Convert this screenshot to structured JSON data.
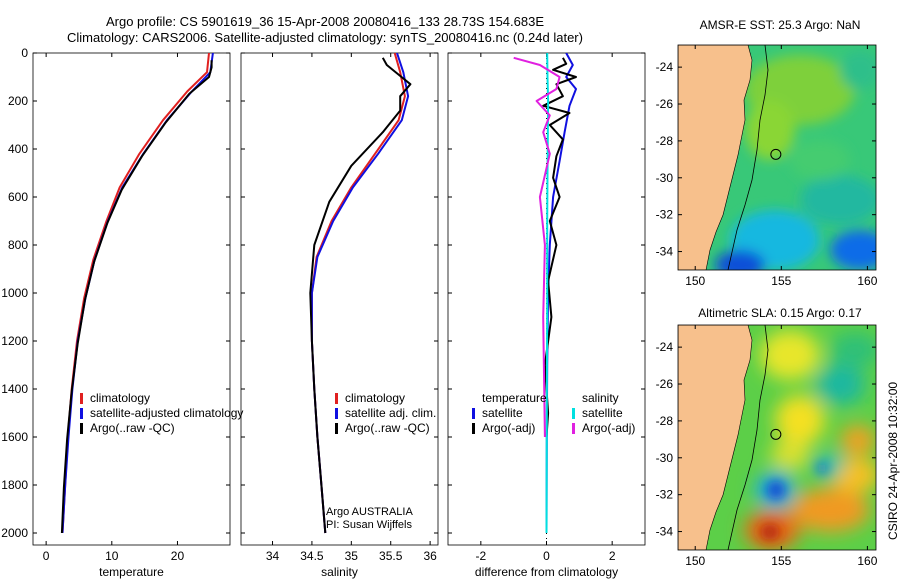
{
  "title_line1": "Argo profile: CS 5901619_36 15-Apr-2008 20080416_133 28.73S 154.683E",
  "title_line2": "Climatology: CARS2006. Satellite-adjusted climatology: synTS_20080416.nc (0.24d later)",
  "side_label": "CSIRO 24-Apr-2008 10:32:00",
  "colors": {
    "climatology": "#e02020",
    "satellite": "#1010e0",
    "argo": "#000000",
    "cyan": "#00e0e0",
    "magenta": "#e020e0",
    "land": "#f7c08c"
  },
  "chart_data": [
    {
      "type": "line",
      "xlabel": "temperature",
      "ylim": [
        2050,
        0
      ],
      "xlim": [
        -2,
        28
      ],
      "xticks": [
        0,
        10,
        20
      ],
      "yticks": [
        0,
        200,
        400,
        600,
        800,
        1000,
        1200,
        1400,
        1600,
        1800,
        2000
      ],
      "series": [
        {
          "name": "climatology",
          "color": "#e02020",
          "x": [
            24.8,
            24.5,
            21.5,
            17.8,
            14.2,
            11.2,
            9.2,
            7.2,
            5.8,
            4.7,
            3.9,
            3.3,
            2.9,
            2.5
          ],
          "y": [
            0,
            80,
            160,
            280,
            420,
            560,
            700,
            860,
            1020,
            1200,
            1400,
            1600,
            1800,
            2000
          ]
        },
        {
          "name": "satellite-adjusted climatology",
          "color": "#1010e0",
          "x": [
            25.4,
            25.0,
            22.2,
            18.4,
            14.8,
            11.6,
            9.4,
            7.4,
            6.0,
            4.8,
            4.0,
            3.4,
            2.9,
            2.5
          ],
          "y": [
            0,
            80,
            160,
            280,
            420,
            560,
            700,
            860,
            1020,
            1200,
            1400,
            1600,
            1800,
            2000
          ]
        },
        {
          "name": "Argo(..raw -QC)",
          "color": "#000000",
          "x": [
            25.2,
            25.2,
            24.8,
            21.8,
            18.2,
            14.6,
            11.5,
            9.3,
            7.3,
            5.9,
            4.8,
            3.9,
            3.2,
            2.7,
            2.4
          ],
          "y": [
            30,
            60,
            100,
            170,
            290,
            430,
            570,
            710,
            870,
            1030,
            1210,
            1410,
            1610,
            1810,
            2000
          ]
        }
      ],
      "legend": [
        "climatology",
        "satellite-adjusted climatology",
        "Argo(..raw -QC)"
      ]
    },
    {
      "type": "line",
      "xlabel": "salinity",
      "ylim": [
        2050,
        0
      ],
      "xlim": [
        33.6,
        36.1
      ],
      "xticks": [
        34,
        34.5,
        35,
        35.5,
        36
      ],
      "yticks": [
        0,
        200,
        400,
        600,
        800,
        1000,
        1200,
        1400,
        1600,
        1800,
        2000
      ],
      "series": [
        {
          "name": "climatology",
          "color": "#e02020",
          "x": [
            35.55,
            35.62,
            35.68,
            35.6,
            35.3,
            35.0,
            34.75,
            34.56,
            34.5,
            34.5,
            34.53,
            34.57,
            34.62,
            34.67
          ],
          "y": [
            0,
            80,
            180,
            280,
            420,
            560,
            700,
            850,
            1000,
            1200,
            1400,
            1600,
            1800,
            2000
          ]
        },
        {
          "name": "satellite adj. clim.",
          "color": "#1010e0",
          "x": [
            35.58,
            35.66,
            35.72,
            35.64,
            35.34,
            35.02,
            34.77,
            34.57,
            34.5,
            34.5,
            34.53,
            34.57,
            34.62,
            34.67
          ],
          "y": [
            0,
            80,
            180,
            280,
            420,
            560,
            700,
            850,
            1000,
            1200,
            1400,
            1600,
            1800,
            2000
          ]
        },
        {
          "name": "Argo(..raw -QC)",
          "color": "#000000",
          "x": [
            35.4,
            35.45,
            35.6,
            35.75,
            35.62,
            35.62,
            35.4,
            35.0,
            34.72,
            34.53,
            34.48,
            34.5,
            34.53,
            34.57,
            34.62,
            34.67
          ],
          "y": [
            20,
            50,
            90,
            130,
            180,
            240,
            330,
            470,
            620,
            800,
            1000,
            1200,
            1400,
            1600,
            1800,
            2000
          ]
        }
      ],
      "legend": [
        "climatology",
        "satellite adj. clim.",
        "Argo(..raw -QC)"
      ]
    },
    {
      "type": "line",
      "xlabel": "difference from climatology",
      "ylim": [
        2050,
        0
      ],
      "xlim": [
        -3,
        3
      ],
      "xticks": [
        -2,
        0,
        2
      ],
      "yticks": [
        0,
        200,
        400,
        600,
        800,
        1000,
        1200,
        1400,
        1600,
        1800,
        2000
      ],
      "series": [
        {
          "name": "temperature satellite",
          "color": "#1010e0",
          "x": [
            0.6,
            0.8,
            0.6,
            0.9,
            0.7,
            0.55,
            0.4,
            0.2,
            0.1,
            0.05,
            0.02,
            0.01,
            0.0
          ],
          "y": [
            0,
            50,
            100,
            150,
            220,
            330,
            450,
            600,
            800,
            1000,
            1300,
            1600,
            2000
          ]
        },
        {
          "name": "temperature Argo(-adj)",
          "color": "#000000",
          "x": [
            0.5,
            0.6,
            0.2,
            0.9,
            0.3,
            0.5,
            -0.1,
            0.7,
            0.1,
            0.5,
            0.3,
            0.2,
            0.4,
            0.1,
            0.3,
            0.05,
            0.15,
            -0.05,
            0.05,
            0.0
          ],
          "y": [
            20,
            45,
            70,
            100,
            130,
            180,
            220,
            250,
            300,
            360,
            430,
            520,
            600,
            700,
            800,
            950,
            1100,
            1300,
            1500,
            1600
          ]
        },
        {
          "name": "salinity satellite",
          "color": "#00e0e0",
          "x": [
            0.02,
            0.03,
            0.05,
            0.04,
            0.03,
            0.02,
            0.02,
            0.01,
            0.0
          ],
          "y": [
            0,
            100,
            200,
            350,
            500,
            700,
            1000,
            1500,
            2000
          ]
        },
        {
          "name": "salinity Argo(-adj)",
          "color": "#e020e0",
          "x": [
            -1.0,
            -0.2,
            0.4,
            0.3,
            -0.3,
            0.1,
            -0.1,
            0.1,
            -0.2,
            -0.05,
            -0.1,
            -0.05
          ],
          "y": [
            20,
            50,
            100,
            150,
            200,
            260,
            330,
            420,
            600,
            800,
            1100,
            1600
          ]
        }
      ],
      "legend_temperature": {
        "heading": "temperature",
        "items": [
          "satellite",
          "Argo(-adj)"
        ]
      },
      "legend_salinity": {
        "heading": "salinity",
        "items": [
          "satellite",
          "Argo(-adj)"
        ]
      }
    },
    {
      "type": "heatmap",
      "title": "AMSR-E SST: 25.3 Argo: NaN",
      "xlim": [
        149,
        160.5
      ],
      "ylim": [
        -35,
        -22.8
      ],
      "xticks": [
        150,
        155,
        160
      ],
      "yticks": [
        -24,
        -26,
        -28,
        -30,
        -32,
        -34
      ],
      "marker": {
        "lon": 154.683,
        "lat": -28.73
      }
    },
    {
      "type": "heatmap",
      "title": "Altimetric SLA: 0.15 Argo: 0.17",
      "xlim": [
        149,
        160.5
      ],
      "ylim": [
        -35,
        -22.8
      ],
      "xticks": [
        150,
        155,
        160
      ],
      "yticks": [
        -24,
        -26,
        -28,
        -30,
        -32,
        -34
      ],
      "marker": {
        "lon": 154.683,
        "lat": -28.73
      }
    }
  ],
  "info_text": {
    "line1": "Argo AUSTRALIA",
    "line2": "PI: Susan Wijffels"
  }
}
